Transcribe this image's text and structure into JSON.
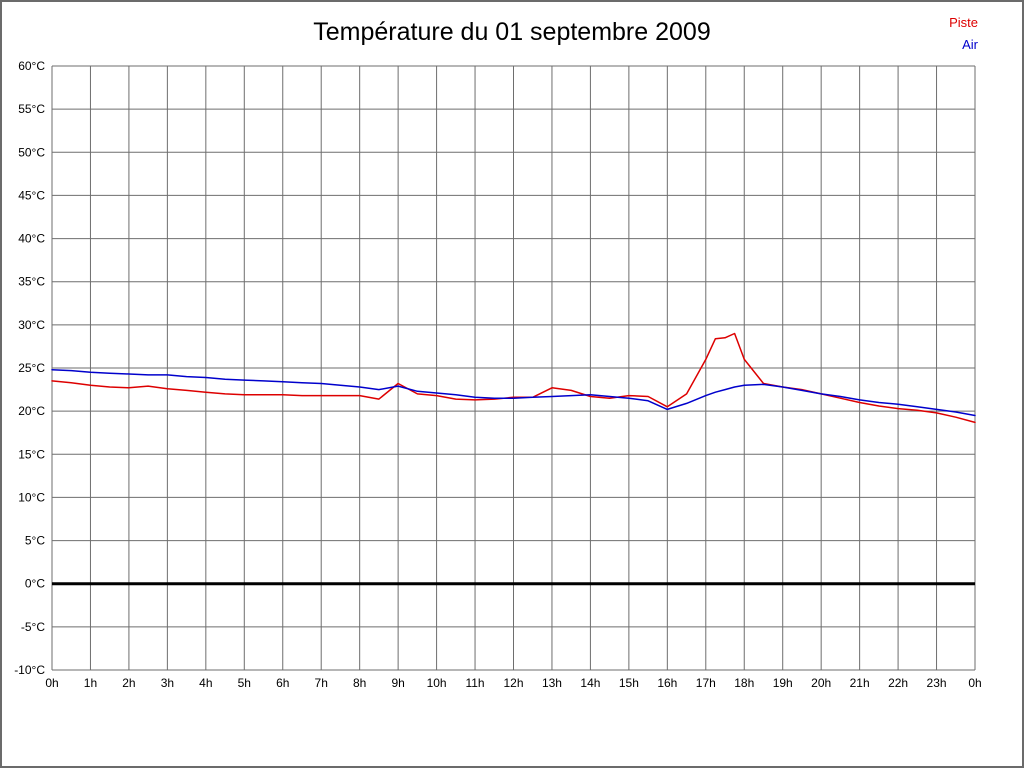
{
  "page": {
    "title": "Température du 01 septembre 2009"
  },
  "legend": {
    "items": [
      {
        "label": "Piste",
        "color": "#dd0000"
      },
      {
        "label": "Air",
        "color": "#0000cc"
      }
    ]
  },
  "chart_data": {
    "type": "line",
    "title": "Température du 01 septembre 2009",
    "xlabel": "",
    "ylabel": "",
    "xlim": [
      0,
      24
    ],
    "ylim": [
      -10,
      60
    ],
    "x_tick_step": 1,
    "y_tick_step": 5,
    "y_tick_suffix": "°C",
    "x_tick_labels": [
      "0h",
      "1h",
      "2h",
      "3h",
      "4h",
      "5h",
      "6h",
      "7h",
      "8h",
      "9h",
      "10h",
      "11h",
      "12h",
      "13h",
      "14h",
      "15h",
      "16h",
      "17h",
      "18h",
      "19h",
      "20h",
      "21h",
      "22h",
      "23h",
      "0h"
    ],
    "grid": true,
    "grid_color": "#6e6e6e",
    "zero_line_bold": true,
    "zero_line_color": "#000000",
    "legend_position": "top-right",
    "x": [
      0,
      0.5,
      1,
      1.5,
      2,
      2.5,
      3,
      3.5,
      4,
      4.5,
      5,
      5.5,
      6,
      6.5,
      7,
      7.5,
      8,
      8.5,
      9,
      9.5,
      10,
      10.5,
      11,
      11.5,
      12,
      12.5,
      13,
      13.5,
      14,
      14.5,
      15,
      15.5,
      16,
      16.5,
      17,
      17.25,
      17.5,
      17.75,
      18,
      18.5,
      19,
      19.5,
      20,
      20.5,
      21,
      21.5,
      22,
      22.5,
      23,
      23.5,
      24
    ],
    "series": [
      {
        "name": "Piste",
        "color": "#dd0000",
        "values": [
          23.5,
          23.3,
          23.0,
          22.8,
          22.7,
          22.9,
          22.6,
          22.4,
          22.2,
          22.0,
          21.9,
          21.9,
          21.9,
          21.8,
          21.8,
          21.8,
          21.8,
          21.4,
          23.2,
          22.0,
          21.8,
          21.4,
          21.3,
          21.4,
          21.6,
          21.6,
          22.7,
          22.4,
          21.7,
          21.5,
          21.8,
          21.7,
          20.5,
          22.0,
          26.0,
          28.4,
          28.5,
          29.0,
          26.0,
          23.2,
          22.8,
          22.5,
          22.0,
          21.5,
          21.0,
          20.6,
          20.3,
          20.1,
          19.8,
          19.3,
          18.7
        ]
      },
      {
        "name": "Air",
        "color": "#0000cc",
        "values": [
          24.8,
          24.7,
          24.5,
          24.4,
          24.3,
          24.2,
          24.2,
          24.0,
          23.9,
          23.7,
          23.6,
          23.5,
          23.4,
          23.3,
          23.2,
          23.0,
          22.8,
          22.5,
          22.9,
          22.3,
          22.1,
          21.9,
          21.6,
          21.5,
          21.5,
          21.6,
          21.7,
          21.8,
          21.9,
          21.7,
          21.5,
          21.2,
          20.2,
          20.9,
          21.8,
          22.2,
          22.5,
          22.8,
          23.0,
          23.1,
          22.8,
          22.4,
          22.0,
          21.7,
          21.3,
          21.0,
          20.8,
          20.5,
          20.2,
          19.9,
          19.5
        ]
      }
    ]
  }
}
